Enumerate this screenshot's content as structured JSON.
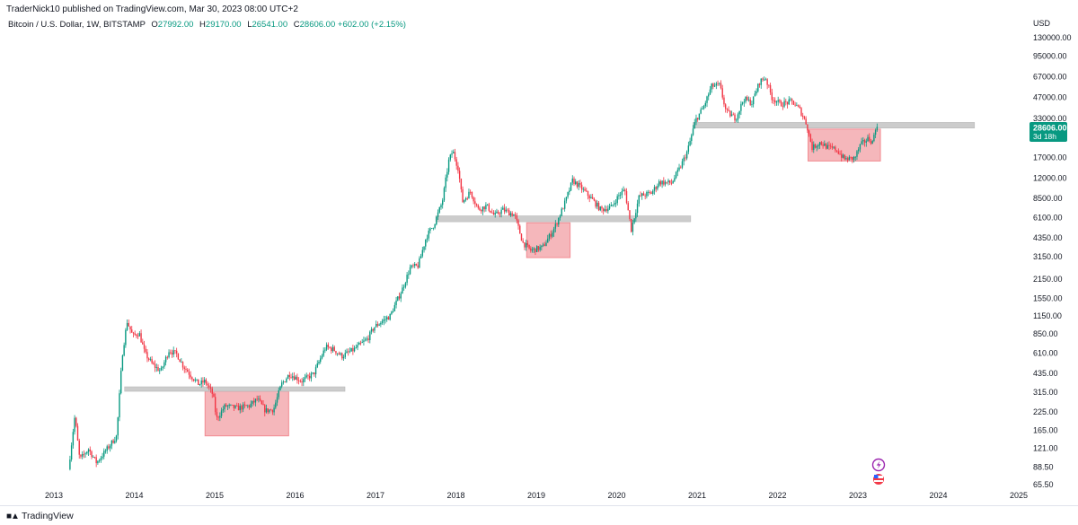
{
  "header": {
    "publisher": "TraderNick10 published on TradingView.com, Mar 30, 2023 08:00 UTC+2"
  },
  "legend": {
    "symbol": "Bitcoin / U.S. Dollar, 1W, BITSTAMP",
    "open_key": "O",
    "open": "27992.00",
    "high_key": "H",
    "high": "29170.00",
    "low_key": "L",
    "low": "26541.00",
    "close_key": "C",
    "close": "28606.00",
    "change": "+602.00 (+2.15%)"
  },
  "footer": {
    "brand": "TradingView"
  },
  "chart_data": {
    "type": "candlestick",
    "title": "Bitcoin / U.S. Dollar, 1W, BITSTAMP",
    "currency": "USD",
    "y_scale": "log",
    "y_ticks": [
      "130000.00",
      "95000.00",
      "67000.00",
      "47000.00",
      "33000.00",
      "17000.00",
      "12000.00",
      "8500.00",
      "6100.00",
      "4350.00",
      "3150.00",
      "2150.00",
      "1550.00",
      "1150.00",
      "850.00",
      "610.00",
      "435.00",
      "315.00",
      "225.00",
      "165.00",
      "121.00",
      "88.50",
      "65.50"
    ],
    "x_ticks": [
      "2013",
      "2014",
      "2015",
      "2016",
      "2017",
      "2018",
      "2019",
      "2020",
      "2021",
      "2022",
      "2023",
      "2024",
      "2025"
    ],
    "last_price": "28606.00",
    "countdown": "3d 18h",
    "colors": {
      "up": "#089981",
      "down": "#f23645",
      "zone_fill": "#f5b7bb",
      "zone_stroke": "#f28b92",
      "level": "#cccccc",
      "last_price_bg": "#089981"
    },
    "price_path": [
      [
        2013.2,
        85
      ],
      [
        2013.28,
        210
      ],
      [
        2013.34,
        100
      ],
      [
        2013.45,
        120
      ],
      [
        2013.55,
        95
      ],
      [
        2013.68,
        120
      ],
      [
        2013.8,
        150
      ],
      [
        2013.87,
        600
      ],
      [
        2013.93,
        1050
      ],
      [
        2014.0,
        820
      ],
      [
        2014.08,
        860
      ],
      [
        2014.15,
        610
      ],
      [
        2014.25,
        500
      ],
      [
        2014.35,
        450
      ],
      [
        2014.45,
        640
      ],
      [
        2014.55,
        600
      ],
      [
        2014.62,
        500
      ],
      [
        2014.72,
        420
      ],
      [
        2014.82,
        360
      ],
      [
        2014.9,
        380
      ],
      [
        2015.0,
        300
      ],
      [
        2015.04,
        200
      ],
      [
        2015.15,
        250
      ],
      [
        2015.3,
        240
      ],
      [
        2015.45,
        250
      ],
      [
        2015.55,
        280
      ],
      [
        2015.65,
        230
      ],
      [
        2015.75,
        235
      ],
      [
        2015.85,
        360
      ],
      [
        2015.95,
        430
      ],
      [
        2016.1,
        380
      ],
      [
        2016.25,
        430
      ],
      [
        2016.4,
        680
      ],
      [
        2016.5,
        650
      ],
      [
        2016.6,
        580
      ],
      [
        2016.75,
        650
      ],
      [
        2016.92,
        780
      ],
      [
        2017.0,
        950
      ],
      [
        2017.1,
        1050
      ],
      [
        2017.2,
        1150
      ],
      [
        2017.35,
        1800
      ],
      [
        2017.45,
        2600
      ],
      [
        2017.55,
        2700
      ],
      [
        2017.65,
        4400
      ],
      [
        2017.75,
        5500
      ],
      [
        2017.85,
        8000
      ],
      [
        2017.93,
        16000
      ],
      [
        2017.98,
        19000
      ],
      [
        2018.05,
        14000
      ],
      [
        2018.1,
        8000
      ],
      [
        2018.2,
        9500
      ],
      [
        2018.3,
        7000
      ],
      [
        2018.4,
        7500
      ],
      [
        2018.5,
        6300
      ],
      [
        2018.6,
        7000
      ],
      [
        2018.75,
        6400
      ],
      [
        2018.85,
        4000
      ],
      [
        2018.95,
        3500
      ],
      [
        2019.1,
        3700
      ],
      [
        2019.25,
        5200
      ],
      [
        2019.38,
        8000
      ],
      [
        2019.47,
        11500
      ],
      [
        2019.55,
        10500
      ],
      [
        2019.7,
        8500
      ],
      [
        2019.82,
        7000
      ],
      [
        2019.95,
        7300
      ],
      [
        2020.05,
        9000
      ],
      [
        2020.12,
        9800
      ],
      [
        2020.2,
        5000
      ],
      [
        2020.3,
        8800
      ],
      [
        2020.45,
        9300
      ],
      [
        2020.55,
        11200
      ],
      [
        2020.7,
        11000
      ],
      [
        2020.8,
        14000
      ],
      [
        2020.9,
        19000
      ],
      [
        2021.0,
        32000
      ],
      [
        2021.1,
        40000
      ],
      [
        2021.2,
        57000
      ],
      [
        2021.3,
        58000
      ],
      [
        2021.38,
        37000
      ],
      [
        2021.5,
        33000
      ],
      [
        2021.6,
        46000
      ],
      [
        2021.7,
        43000
      ],
      [
        2021.8,
        62000
      ],
      [
        2021.87,
        66000
      ],
      [
        2021.95,
        47000
      ],
      [
        2022.05,
        42000
      ],
      [
        2022.2,
        44000
      ],
      [
        2022.3,
        38000
      ],
      [
        2022.38,
        30000
      ],
      [
        2022.45,
        20000
      ],
      [
        2022.55,
        22000
      ],
      [
        2022.65,
        20000
      ],
      [
        2022.75,
        19500
      ],
      [
        2022.85,
        16500
      ],
      [
        2022.98,
        16800
      ],
      [
        2023.05,
        21000
      ],
      [
        2023.15,
        23500
      ],
      [
        2023.2,
        22000
      ],
      [
        2023.24,
        28606
      ]
    ],
    "zones": [
      {
        "x": [
          2014.88,
          2015.92
        ],
        "y": [
          150,
          320
        ]
      },
      {
        "x": [
          2018.88,
          2019.42
        ],
        "y": [
          3100,
          5600
        ]
      },
      {
        "x": [
          2022.38,
          2023.28
        ],
        "y": [
          16000,
          27500
        ]
      }
    ],
    "levels": [
      {
        "x": [
          2013.88,
          2016.62
        ],
        "y": [
          325,
          345
        ]
      },
      {
        "x": [
          2017.75,
          2020.92
        ],
        "y": [
          5700,
          6300
        ]
      },
      {
        "x": [
          2020.95,
          2024.45
        ],
        "y": [
          28000,
          30800
        ]
      }
    ]
  }
}
